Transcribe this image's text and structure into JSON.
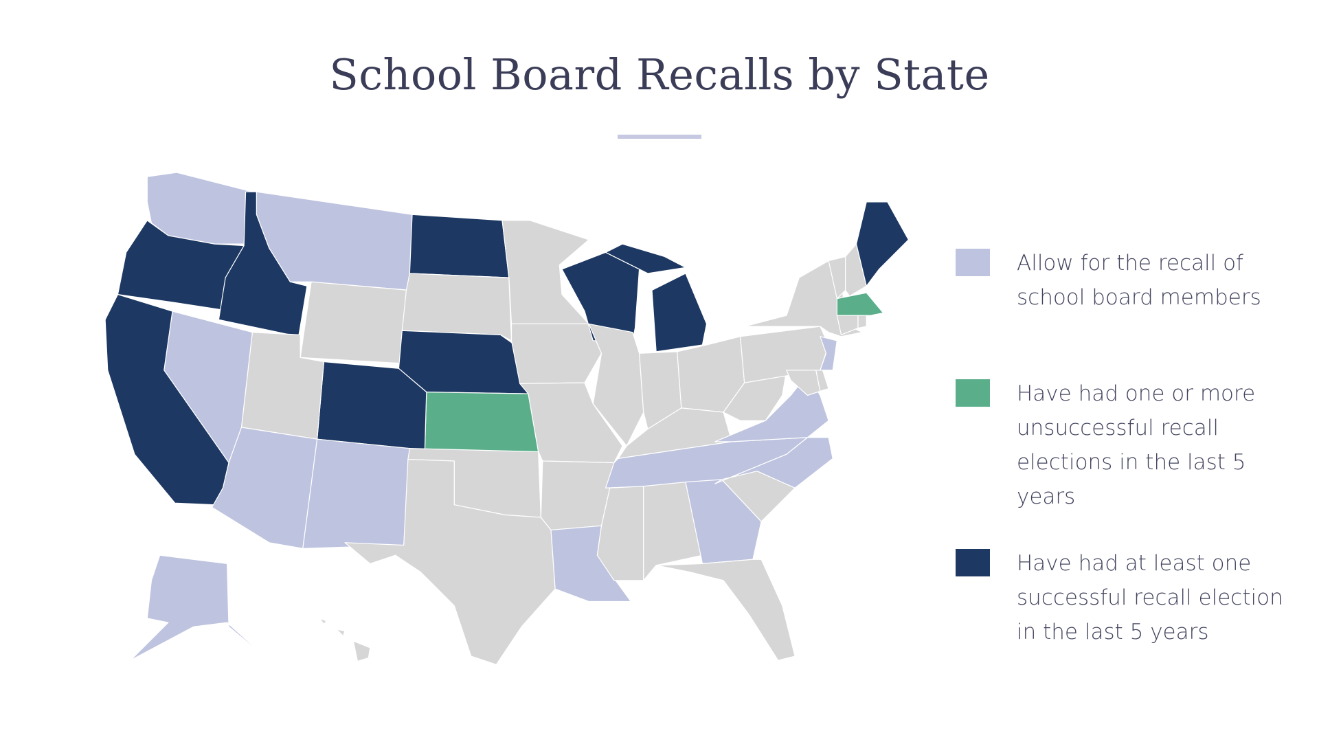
{
  "title": "School Board Recalls by State",
  "colors": {
    "allow": "#bec3df",
    "unsuccessful": "#5aae8a",
    "successful": "#1d3862",
    "none": "#d6d6d6"
  },
  "legend": [
    {
      "key": "allow",
      "label": "Allow for the recall of school board members"
    },
    {
      "key": "unsuccessful",
      "label": "Have had one or more unsuccessful recall elections in the last 5 years"
    },
    {
      "key": "successful",
      "label": "Have had at least one successful recall election in the last 5 years"
    }
  ],
  "states": {
    "WA": "allow",
    "OR": "successful",
    "ID": "successful",
    "MT": "allow",
    "WY": "none",
    "ND": "successful",
    "SD": "none",
    "NE": "successful",
    "KS": "unsuccessful",
    "CO": "successful",
    "UT": "none",
    "NV": "allow",
    "CA": "successful",
    "AZ": "allow",
    "NM": "allow",
    "OK": "none",
    "TX": "none",
    "MN": "none",
    "IA": "none",
    "MO": "none",
    "AR": "none",
    "LA": "allow",
    "WI": "successful",
    "MI": "successful",
    "IL": "none",
    "IN": "none",
    "OH": "none",
    "KY": "none",
    "TN": "allow",
    "MS": "none",
    "AL": "none",
    "GA": "allow",
    "FL": "none",
    "SC": "none",
    "NC": "allow",
    "VA": "allow",
    "WV": "none",
    "PA": "none",
    "NY": "none",
    "VT": "none",
    "NH": "none",
    "ME": "successful",
    "MA": "unsuccessful",
    "CT": "none",
    "RI": "none",
    "NJ": "allow",
    "MD": "none",
    "DE": "none",
    "AK": "allow",
    "HI": "none"
  }
}
